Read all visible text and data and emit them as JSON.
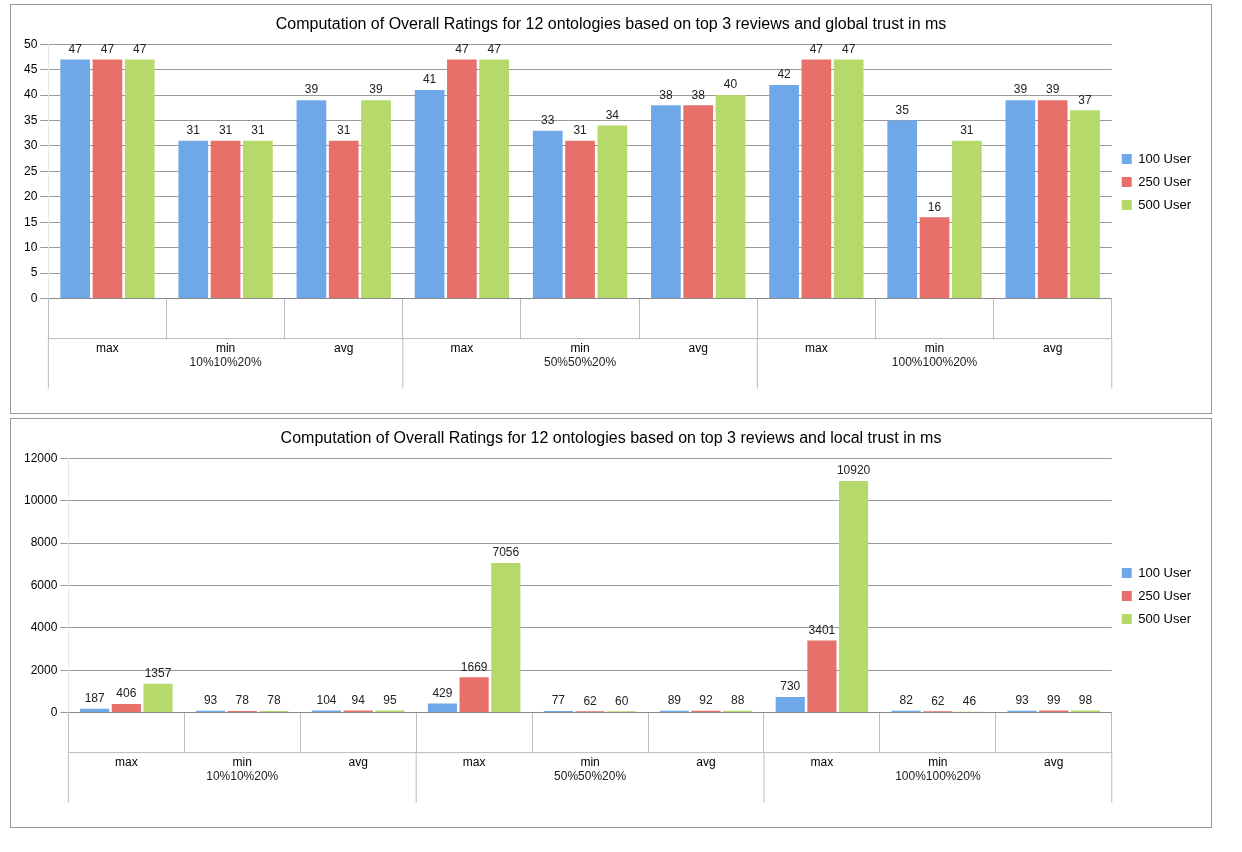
{
  "chart_data": [
    {
      "type": "bar",
      "title": "Computation of Overall Ratings for 12 ontologies based on top 3 reviews and global trust in ms",
      "categories": [
        "max",
        "min",
        "avg",
        "max",
        "min",
        "avg",
        "max",
        "min",
        "avg"
      ],
      "series": [
        {
          "name": "100 User",
          "color": "#6fa8e8",
          "values": [
            47,
            31,
            39,
            41,
            33,
            38,
            42,
            35,
            39
          ]
        },
        {
          "name": "250 User",
          "color": "#e8706a",
          "values": [
            47,
            31,
            31,
            47,
            31,
            38,
            47,
            16,
            39
          ]
        },
        {
          "name": "500 User",
          "color": "#b5d96a",
          "values": [
            47,
            31,
            39,
            47,
            34,
            40,
            47,
            31,
            37
          ]
        }
      ],
      "ylim": [
        0,
        50
      ],
      "yticks": [
        0,
        5,
        10,
        15,
        20,
        25,
        30,
        35,
        40,
        45,
        50
      ],
      "grid": "y",
      "legend": "right",
      "data_labels": true,
      "annotations": [
        "10%10%20%",
        "50%50%20%",
        "100%100%20%"
      ]
    },
    {
      "type": "bar",
      "title": "Computation of Overall Ratings for 12 ontologies based on top 3 reviews and local trust in ms",
      "categories": [
        "max",
        "min",
        "avg",
        "max",
        "min",
        "avg",
        "max",
        "min",
        "avg"
      ],
      "series": [
        {
          "name": "100 User",
          "color": "#6fa8e8",
          "values": [
            187,
            93,
            104,
            429,
            77,
            89,
            730,
            82,
            93
          ]
        },
        {
          "name": "250 User",
          "color": "#e8706a",
          "values": [
            406,
            78,
            94,
            1669,
            62,
            92,
            3401,
            62,
            99
          ]
        },
        {
          "name": "500 User",
          "color": "#b5d96a",
          "values": [
            1357,
            78,
            95,
            7056,
            60,
            88,
            10920,
            46,
            98
          ]
        }
      ],
      "ylim": [
        0,
        12000
      ],
      "yticks": [
        0,
        2000,
        4000,
        6000,
        8000,
        10000,
        12000
      ],
      "grid": "y",
      "legend": "right",
      "data_labels": true,
      "annotations": [
        "10%10%20%",
        "50%50%20%",
        "100%100%20%"
      ]
    }
  ]
}
